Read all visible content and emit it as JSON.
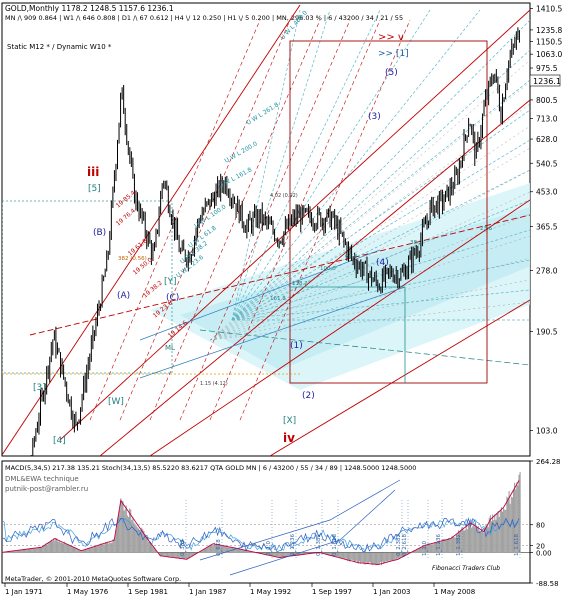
{
  "header": {
    "line1": "GOLD,Monthly  1178.2 1248.5 1157.6 1236.1",
    "line2": "MN /\\ 909  0.864 | W1 /\\ 646  0.808 | D1 /\\ 67  0.612 | H4 \\/ 12  0.250 | H1 \\/ 5  0.200 | MN, 296.03 % | 6 / 43200 / 34 / 21 / 55",
    "line3": "Static  M12   *   /  Dynamic  W10   *"
  },
  "colors": {
    "background": "#ffffff",
    "candles": "#000000",
    "channel_red": "#c00000",
    "fan_cyan": "#5fb7c7",
    "fill_cyan": "#d6f3f8",
    "wave_blue": "#2020a0",
    "histogram_gray": "#a0a0a0",
    "macd_line": "#c00040",
    "stoch_main": "#3060c0",
    "stoch_signal": "#40a0e0"
  },
  "chart_data": [
    {
      "type": "line",
      "title": "GOLD,Monthly",
      "ohlc_last": {
        "open": 1178.2,
        "high": 1248.5,
        "low": 1157.6,
        "close": 1236.1
      },
      "y_log_scale": true,
      "ylim": [
        88,
        1460
      ],
      "xlim": [
        1971.0,
        2011.0
      ],
      "yticks": [
        "1410.5",
        "1235.8",
        "1150.5",
        "1063.0",
        "975.5",
        "888.0",
        "800.5",
        "713.0",
        "628.0",
        "540.5",
        "453.0",
        "365.5",
        "278.0",
        "190.5",
        "103.0"
      ],
      "current_price_label": "1236.1",
      "x": [
        1971.0,
        1972.5,
        1973.5,
        1974.9,
        1976.6,
        1978.0,
        1979.0,
        1980.05,
        1981.0,
        1982.5,
        1983.2,
        1984.5,
        1985.2,
        1986.0,
        1987.9,
        1989.5,
        1990.5,
        1992.0,
        1993.3,
        1995.0,
        1996.0,
        1997.5,
        1999.5,
        2000.5,
        2001.3,
        2002.5,
        2003.5,
        2004.5,
        2005.5,
        2006.4,
        2006.9,
        2007.6,
        2008.3,
        2008.8,
        2009.3,
        2009.9,
        2010.3
      ],
      "close": [
        37,
        60,
        100,
        185,
        105,
        190,
        300,
        850,
        450,
        300,
        500,
        310,
        305,
        390,
        485,
        365,
        390,
        340,
        390,
        385,
        385,
        300,
        255,
        275,
        270,
        320,
        410,
        430,
        500,
        720,
        560,
        790,
        960,
        740,
        990,
        1150,
        1236
      ],
      "annotations": [
        "iii",
        "[5]",
        "iv",
        "[X]",
        ">> v",
        ">> [1]",
        "(5)",
        "(3)",
        "(4)",
        "(B)",
        "(A)",
        "(C)",
        "[Y]",
        "[W]",
        "[3]",
        "[4]",
        "(2)",
        "(1)",
        "4.02 (0.92)",
        "382 (0.56)",
        "1.15 (4.12)",
        "U W L 400.0",
        "U W L 261.8",
        "U W L 200.0",
        "U W L 161.8",
        "U W L 100.0",
        "U W L 61.8",
        "U W L 38.2",
        "U W L 23.6",
        "ML",
        "161.8",
        "138.2",
        "100.0",
        "61.8",
        "38.2",
        "23.6"
      ],
      "fib_fan_labels": [
        "19 85.4",
        "19 76.4",
        "19 61.8",
        "19 50.0",
        "19 38.2",
        "19 23.6",
        "19 14.6"
      ]
    },
    {
      "type": "line",
      "title": "MACD(5,34,5) 217.38 135.21  Stoch(34,13,5) 85.5220 83.6217  QTA GOLD MN | 6 / 43200 / 55 / 34 / 89 | 1248.5000  1248.5000",
      "legend": [
        "DML&EWA technique",
        "putnik-post@rambler.ru"
      ],
      "ylim": [
        -88.58,
        264.28
      ],
      "yticks": [
        "264.28",
        "80",
        "20",
        "0.00",
        "-88.58"
      ],
      "x": [
        1971,
        1974,
        1975,
        1977,
        1979.5,
        1980,
        1982,
        1983,
        1985,
        1987,
        1989,
        1992,
        1995,
        1998,
        1999.5,
        2001,
        2003,
        2005,
        2006.5,
        2007.5,
        2008,
        2009,
        2010.3
      ],
      "macd": [
        0,
        15,
        40,
        5,
        35,
        150,
        40,
        -10,
        -20,
        25,
        10,
        -15,
        0,
        -30,
        -35,
        -20,
        20,
        40,
        85,
        60,
        95,
        130,
        217
      ],
      "stoch": [
        40,
        70,
        85,
        20,
        90,
        95,
        30,
        60,
        15,
        70,
        20,
        15,
        55,
        10,
        20,
        55,
        80,
        85,
        90,
        55,
        70,
        85,
        86
      ],
      "cycle_labels": [
        "1_1.618",
        "1_1.382",
        "1_1.236",
        "1_1.0",
        "0_2.618",
        "0_2.382",
        "0_1.618",
        "0_1.382",
        "0_1.236",
        "0_1.0",
        "0_618",
        "0_382"
      ],
      "watermark": "Fibonacci Traders Club",
      "copyright": "MetaTrader, © 2001-2010 MetaQuotes Software Corp."
    }
  ],
  "x_axis_labels": [
    "1 Jan 1971",
    "1 May 1976",
    "1 Sep 1981",
    "1 Jan 1987",
    "1 May 1992",
    "1 Sep 1997",
    "1 Jan 2003",
    "1 May 2008"
  ]
}
